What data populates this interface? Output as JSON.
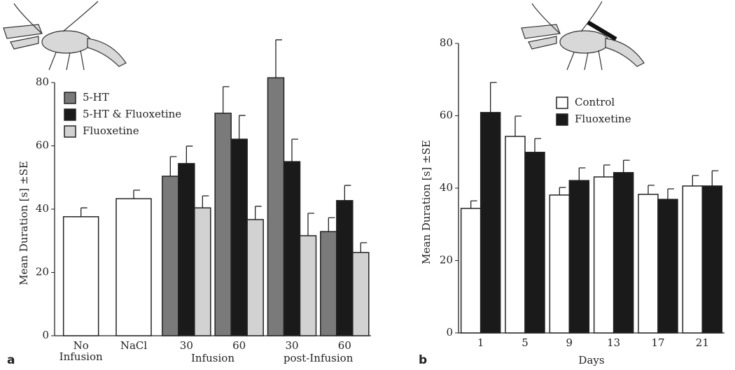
{
  "chart_data": [
    {
      "type": "bar",
      "panel_label": "a",
      "y_label": "Mean Duration [s] ±SE",
      "categories": [
        "No Infusion",
        "NaCl",
        "30",
        "60",
        "30",
        "60"
      ],
      "group_labels": [
        "Infusion",
        "post-Infusion"
      ],
      "ylim": [
        0,
        80
      ],
      "yticks": [
        0,
        20,
        40,
        60,
        80
      ],
      "series": [
        {
          "color": "#ffffff",
          "values": [
            37.6,
            43.3,
            null,
            null,
            null,
            null
          ],
          "errors": [
            2.8,
            2.7,
            null,
            null,
            null,
            null
          ]
        },
        {
          "name": "5-HT",
          "color": "#7a7a7a",
          "values": [
            null,
            null,
            50.4,
            70.3,
            81.5,
            32.9
          ],
          "errors": [
            null,
            null,
            6.2,
            8.4,
            12,
            4.4
          ]
        },
        {
          "name": "5-HT & Fluoxetine",
          "color": "#1a1a1a",
          "values": [
            null,
            null,
            54.4,
            62.1,
            55,
            42.7
          ],
          "errors": [
            null,
            null,
            5.5,
            7.5,
            7.1,
            4.8
          ]
        },
        {
          "name": "Fluoxetine",
          "color": "#d2d2d2",
          "values": [
            null,
            null,
            40.4,
            36.7,
            31.6,
            26.3
          ],
          "errors": [
            null,
            null,
            3.8,
            4.2,
            7.1,
            3.1
          ]
        }
      ]
    },
    {
      "type": "bar",
      "panel_label": "b",
      "y_label": "Mean Duration [s] ±SE",
      "x_label": "Days",
      "categories": [
        "1",
        "5",
        "9",
        "13",
        "17",
        "21"
      ],
      "ylim": [
        0,
        80
      ],
      "yticks": [
        0,
        20,
        40,
        60,
        80
      ],
      "series": [
        {
          "name": "Control",
          "color": "#ffffff",
          "values": [
            34.4,
            54.3,
            38.1,
            43.1,
            38.3,
            40.6
          ],
          "errors": [
            2.1,
            5.6,
            2.1,
            3.3,
            2.5,
            2.9
          ]
        },
        {
          "name": "Fluoxetine",
          "color": "#1a1a1a",
          "values": [
            60.9,
            49.9,
            42.1,
            44.3,
            36.9,
            40.6
          ],
          "errors": [
            8.3,
            3.8,
            3.5,
            3.4,
            2.9,
            4.2
          ]
        }
      ]
    }
  ]
}
